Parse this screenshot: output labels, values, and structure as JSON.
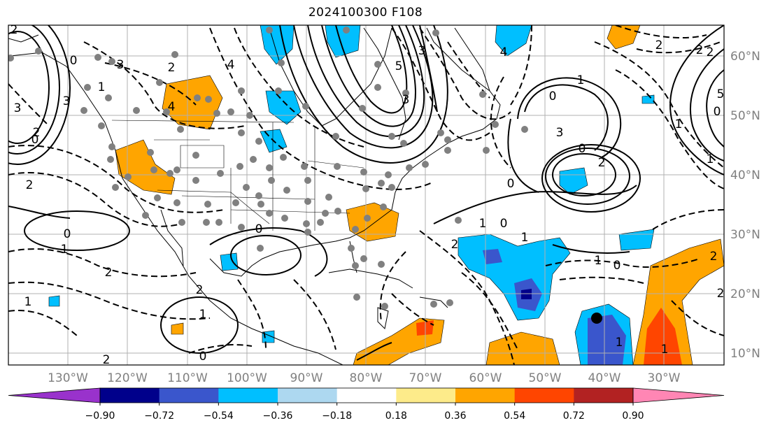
{
  "title": "2024100300 F108",
  "map": {
    "lon_labels": [
      "130°W",
      "120°W",
      "110°W",
      "100°W",
      "90°W",
      "80°W",
      "70°W",
      "60°W",
      "50°W",
      "40°W",
      "30°W"
    ],
    "lat_labels": [
      "60°N",
      "50°N",
      "40°N",
      "30°N",
      "20°N",
      "10°N"
    ],
    "contour_labels": [
      "2",
      "3",
      "0",
      "1",
      "2",
      "4",
      "3",
      "2",
      "0",
      "2",
      "3",
      "4",
      "5",
      "3",
      "3",
      "0",
      "1",
      "0",
      "2",
      "2",
      "0",
      "1",
      "1",
      "0",
      "0",
      "1",
      "2",
      "1",
      "0",
      "2",
      "2",
      "0",
      "1",
      "0",
      "2",
      "1",
      "2",
      "1",
      "0",
      "2",
      "1",
      "3",
      "5",
      "4",
      "2",
      "2",
      "1",
      "1"
    ]
  },
  "colorbar": {
    "tick_labels": [
      "−0.90",
      "−0.72",
      "−0.54",
      "−0.36",
      "−0.18",
      "0.18",
      "0.36",
      "0.54",
      "0.72",
      "0.90"
    ],
    "colors": [
      "#9932cc",
      "#00008b",
      "#3a56cc",
      "#00bfff",
      "#add8f0",
      "#ffffff",
      "#fdeb8a",
      "#ffa500",
      "#ff4500",
      "#b22222",
      "#ff86b4"
    ]
  },
  "colors": {
    "land_line": "#000000",
    "station_dot": "#808080",
    "grid": "#b0b0b0",
    "axis_label": "#808080"
  }
}
